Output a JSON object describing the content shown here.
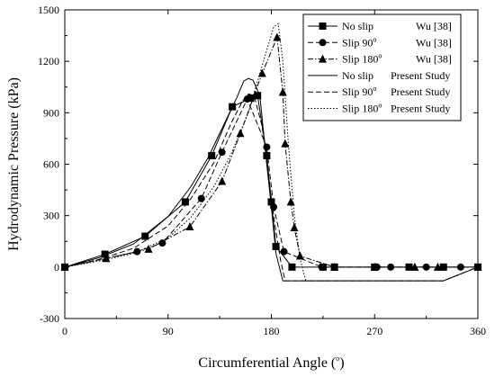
{
  "chart_data": {
    "type": "line",
    "title": "",
    "xlabel": "Circumferential Angle (",
    "xlabel_sup": "o",
    "xlabel_end": ")",
    "ylabel": "Hydrodynamic Pressure (kPa)",
    "xlim": [
      0,
      360
    ],
    "ylim": [
      -300,
      1500
    ],
    "xticks": [
      0,
      90,
      180,
      270,
      360
    ],
    "yticks": [
      -300,
      0,
      300,
      600,
      900,
      1200,
      1500
    ],
    "legend_position": "top-right",
    "grid": false,
    "series": [
      {
        "name": "No slip",
        "source": "Wu [38]",
        "marker": "square",
        "line": "solid",
        "points": [
          [
            0,
            0
          ],
          [
            35,
            75
          ],
          [
            70,
            180
          ],
          [
            105,
            380
          ],
          [
            128,
            650
          ],
          [
            146,
            935
          ],
          [
            162,
            985
          ],
          [
            168,
            1000
          ],
          [
            176,
            650
          ],
          [
            180,
            380
          ],
          [
            184,
            120
          ],
          [
            198,
            0
          ],
          [
            225,
            0
          ],
          [
            235,
            0
          ],
          [
            270,
            0
          ],
          [
            300,
            0
          ],
          [
            330,
            0
          ],
          [
            360,
            0
          ]
        ]
      },
      {
        "name": "Slip 90",
        "name_sup": "o",
        "source": "Wu [38]",
        "marker": "circle",
        "line": "dash",
        "points": [
          [
            0,
            0
          ],
          [
            63,
            90
          ],
          [
            85,
            140
          ],
          [
            119,
            400
          ],
          [
            137,
            670
          ],
          [
            159,
            980
          ],
          [
            176,
            700
          ],
          [
            182,
            350
          ],
          [
            191,
            90
          ],
          [
            224,
            0
          ],
          [
            272,
            0
          ],
          [
            284,
            0
          ],
          [
            315,
            0
          ],
          [
            345,
            0
          ]
        ]
      },
      {
        "name": "Slip 180",
        "name_sup": "o",
        "source": "Wu [38]",
        "marker": "triangle",
        "line": "dashdot",
        "points": [
          [
            0,
            0
          ],
          [
            36,
            50
          ],
          [
            73,
            105
          ],
          [
            109,
            235
          ],
          [
            137,
            500
          ],
          [
            153,
            780
          ],
          [
            172,
            1130
          ],
          [
            185,
            1340
          ],
          [
            190,
            1020
          ],
          [
            192,
            720
          ],
          [
            197,
            380
          ],
          [
            200,
            230
          ],
          [
            205,
            65
          ],
          [
            235,
            0
          ],
          [
            270,
            0
          ],
          [
            305,
            0
          ],
          [
            325,
            0
          ],
          [
            360,
            0
          ]
        ]
      },
      {
        "name": "No slip",
        "source": "Present Study",
        "marker": "none",
        "line": "solid",
        "points": [
          [
            0,
            0
          ],
          [
            30,
            55
          ],
          [
            60,
            135
          ],
          [
            90,
            295
          ],
          [
            110,
            470
          ],
          [
            125,
            640
          ],
          [
            140,
            850
          ],
          [
            150,
            990
          ],
          [
            156,
            1085
          ],
          [
            160,
            1100
          ],
          [
            164,
            1090
          ],
          [
            170,
            1000
          ],
          [
            176,
            600
          ],
          [
            180,
            350
          ],
          [
            184,
            80
          ],
          [
            190,
            -80
          ],
          [
            330,
            -80
          ],
          [
            345,
            -40
          ],
          [
            360,
            0
          ]
        ]
      },
      {
        "name": "Slip 90",
        "name_sup": "o",
        "source": "Present Study",
        "marker": "none",
        "line": "dash",
        "points": [
          [
            0,
            0
          ],
          [
            30,
            45
          ],
          [
            60,
            110
          ],
          [
            90,
            240
          ],
          [
            110,
            400
          ],
          [
            130,
            610
          ],
          [
            145,
            840
          ],
          [
            155,
            970
          ],
          [
            160,
            1010
          ],
          [
            165,
            1000
          ],
          [
            172,
            820
          ],
          [
            178,
            500
          ],
          [
            183,
            250
          ],
          [
            188,
            40
          ],
          [
            192,
            -80
          ],
          [
            330,
            -80
          ],
          [
            345,
            -40
          ],
          [
            360,
            0
          ]
        ]
      },
      {
        "name": "Slip 180",
        "name_sup": "o",
        "source": "Present Study",
        "marker": "none",
        "line": "dot",
        "points": [
          [
            0,
            0
          ],
          [
            30,
            35
          ],
          [
            60,
            80
          ],
          [
            90,
            170
          ],
          [
            110,
            290
          ],
          [
            130,
            470
          ],
          [
            145,
            660
          ],
          [
            160,
            900
          ],
          [
            170,
            1130
          ],
          [
            178,
            1310
          ],
          [
            182,
            1400
          ],
          [
            186,
            1420
          ],
          [
            190,
            1200
          ],
          [
            195,
            700
          ],
          [
            200,
            300
          ],
          [
            205,
            50
          ],
          [
            210,
            -80
          ],
          [
            330,
            -80
          ],
          [
            345,
            -40
          ],
          [
            360,
            0
          ]
        ]
      }
    ]
  }
}
